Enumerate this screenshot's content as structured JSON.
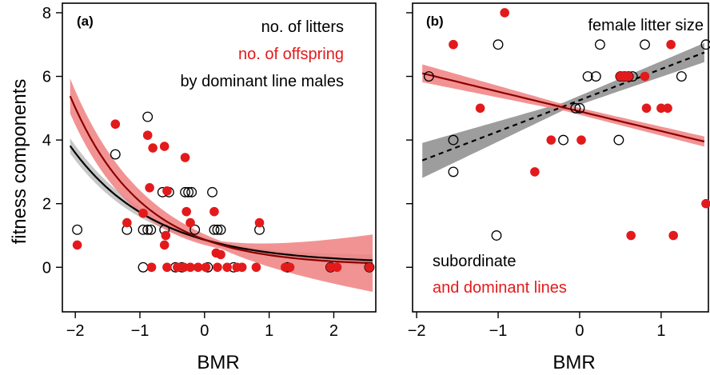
{
  "chart_data": [
    {
      "panel_label": "(a)",
      "type": "scatter",
      "xlabel": "BMR",
      "ylabel": "fitness components",
      "xlim": [
        -2.2,
        2.65
      ],
      "ylim": [
        -1.4,
        8.3
      ],
      "x_ticks": [
        -2,
        -1,
        0,
        1,
        2
      ],
      "x_tick_labels": [
        "−2",
        "−1",
        "0",
        "1",
        "2"
      ],
      "y_ticks": [
        0,
        2,
        4,
        6,
        8
      ],
      "y_tick_labels": [
        "0",
        "2",
        "4",
        "6",
        "8"
      ],
      "legend_lines": [
        {
          "text": "no. of litters",
          "color": "#000000"
        },
        {
          "text": "no. of offspring",
          "color": "#e31a1c"
        },
        {
          "text": "by dominant line males",
          "color": "#000000"
        }
      ],
      "series": [
        {
          "name": "no. of litters",
          "marker": "open-circle",
          "color": "#000000",
          "points": [
            [
              -1.97,
              1.18
            ],
            [
              -1.38,
              3.55
            ],
            [
              -1.2,
              1.18
            ],
            [
              -0.95,
              1.18
            ],
            [
              -0.88,
              1.18
            ],
            [
              -0.83,
              1.18
            ],
            [
              -0.65,
              2.36
            ],
            [
              -0.55,
              2.36
            ],
            [
              -0.3,
              2.36
            ],
            [
              -0.25,
              2.36
            ],
            [
              -0.2,
              2.36
            ],
            [
              -0.15,
              1.18
            ],
            [
              0.15,
              1.18
            ],
            [
              0.2,
              1.18
            ],
            [
              0.25,
              1.18
            ],
            [
              0.85,
              1.18
            ],
            [
              -0.88,
              4.73
            ],
            [
              -0.62,
              1.18
            ],
            [
              0.12,
              2.36
            ],
            [
              -0.95,
              0.0
            ],
            [
              -0.45,
              0.0
            ],
            [
              -0.35,
              0.0
            ],
            [
              0.05,
              0.0
            ],
            [
              0.45,
              0.0
            ],
            [
              1.28,
              0.0
            ],
            [
              1.95,
              0.0
            ],
            [
              2.55,
              0.0
            ]
          ]
        },
        {
          "name": "no. of offspring",
          "marker": "filled-circle",
          "color": "#e31a1c",
          "points": [
            [
              -1.97,
              0.7
            ],
            [
              -1.38,
              4.5
            ],
            [
              -1.2,
              1.4
            ],
            [
              -0.95,
              1.7
            ],
            [
              -0.88,
              4.15
            ],
            [
              -0.85,
              2.5
            ],
            [
              -0.8,
              3.75
            ],
            [
              -0.62,
              3.8
            ],
            [
              -0.58,
              2.4
            ],
            [
              -0.62,
              0.7
            ],
            [
              -0.6,
              1.0
            ],
            [
              -0.3,
              3.45
            ],
            [
              -0.28,
              1.75
            ],
            [
              -0.22,
              1.4
            ],
            [
              0.15,
              1.75
            ],
            [
              0.18,
              0.45
            ],
            [
              0.25,
              0.4
            ],
            [
              0.85,
              1.4
            ],
            [
              -0.82,
              0.0
            ],
            [
              -0.58,
              0.0
            ],
            [
              -0.42,
              0.0
            ],
            [
              -0.32,
              0.0
            ],
            [
              -0.22,
              0.0
            ],
            [
              -0.1,
              0.0
            ],
            [
              0.02,
              0.0
            ],
            [
              0.2,
              0.0
            ],
            [
              0.35,
              0.0
            ],
            [
              0.5,
              0.0
            ],
            [
              0.58,
              0.0
            ],
            [
              0.8,
              0.0
            ],
            [
              1.25,
              0.0
            ],
            [
              1.32,
              0.0
            ],
            [
              1.95,
              0.0
            ],
            [
              2.05,
              0.0
            ],
            [
              2.55,
              0.0
            ]
          ]
        }
      ],
      "fits": [
        {
          "series": "no. of litters",
          "color": "#000000",
          "band_color": "#bdbdbd",
          "model": "exp",
          "a": 0.745,
          "b": -0.77,
          "c": 0.12,
          "band_width": [
            0.24,
            0.05,
            0.18
          ]
        },
        {
          "series": "no. of offspring",
          "color": "#8b0000",
          "band_color": "#f08080",
          "model": "exp",
          "a": 0.82,
          "b": -0.9,
          "c": 0.05,
          "band_width": [
            0.55,
            0.12,
            0.9
          ]
        }
      ]
    },
    {
      "panel_label": "(b)",
      "type": "scatter",
      "xlabel": "BMR",
      "ylabel": "",
      "xlim": [
        -2.05,
        1.58
      ],
      "ylim": [
        -1.4,
        8.3
      ],
      "x_ticks": [
        -2,
        -1,
        0,
        1
      ],
      "x_tick_labels": [
        "−2",
        "−1",
        "0",
        "1"
      ],
      "y_ticks": [
        0,
        2,
        4,
        6,
        8
      ],
      "y_tick_labels": [
        "",
        "",
        "",
        "",
        ""
      ],
      "title_text": "female litter size",
      "legend_lines": [
        {
          "text": "subordinate",
          "color": "#000000"
        },
        {
          "text": "and dominant lines",
          "color": "#e31a1c"
        }
      ],
      "series": [
        {
          "name": "subordinate",
          "marker": "open-circle",
          "color": "#000000",
          "points": [
            [
              -1.85,
              6.0
            ],
            [
              -1.55,
              4.0
            ],
            [
              -1.55,
              3.0
            ],
            [
              -1.0,
              7.0
            ],
            [
              -1.02,
              1.0
            ],
            [
              -0.2,
              4.0
            ],
            [
              -0.05,
              5.0
            ],
            [
              0.0,
              5.0
            ],
            [
              0.1,
              6.0
            ],
            [
              0.2,
              6.0
            ],
            [
              0.25,
              7.0
            ],
            [
              0.48,
              4.0
            ],
            [
              0.5,
              6.0
            ],
            [
              0.55,
              6.0
            ],
            [
              0.6,
              6.0
            ],
            [
              0.65,
              6.0
            ],
            [
              0.8,
              7.0
            ],
            [
              1.25,
              6.0
            ],
            [
              1.55,
              7.0
            ]
          ]
        },
        {
          "name": "dominant lines",
          "marker": "filled-circle",
          "color": "#e31a1c",
          "points": [
            [
              -1.55,
              7.0
            ],
            [
              -0.92,
              8.0
            ],
            [
              -1.22,
              5.0
            ],
            [
              -0.35,
              4.0
            ],
            [
              -0.55,
              3.0
            ],
            [
              0.02,
              4.0
            ],
            [
              0.5,
              6.0
            ],
            [
              0.55,
              6.0
            ],
            [
              0.6,
              6.0
            ],
            [
              0.8,
              6.0
            ],
            [
              0.82,
              5.0
            ],
            [
              1.0,
              5.0
            ],
            [
              1.08,
              5.0
            ],
            [
              1.12,
              7.0
            ],
            [
              0.63,
              1.0
            ],
            [
              1.15,
              1.0
            ],
            [
              1.55,
              2.0
            ]
          ]
        }
      ],
      "fits": [
        {
          "series": "subordinate",
          "color": "#000000",
          "dashed": true,
          "band_color": "#8c8c8c",
          "model": "linear",
          "intercept": 5.25,
          "slope": 0.98,
          "band_width": [
            0.55,
            0.12,
            0.3
          ]
        },
        {
          "series": "dominant lines",
          "color": "#8b0000",
          "dashed": false,
          "band_color": "#f08080",
          "model": "linear",
          "intercept": 4.9,
          "slope": -0.62,
          "band_width": [
            0.28,
            0.1,
            0.16
          ]
        }
      ]
    }
  ]
}
